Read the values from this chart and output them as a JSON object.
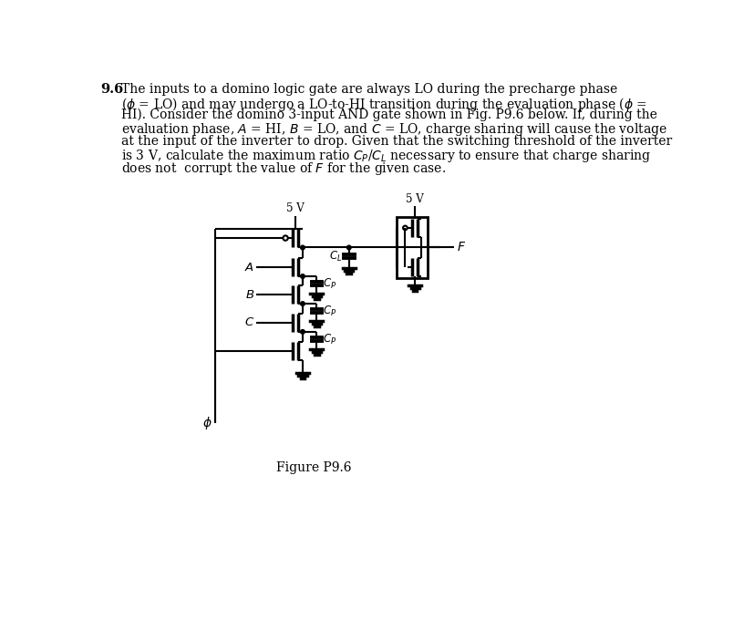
{
  "bg_color": "#ffffff",
  "fg_color": "#000000",
  "figure_label": "Figure P9.6",
  "text_problem_num": "9.6",
  "text_lines": [
    "The inputs to a domino logic gate are always LO during the precharge phase",
    "($\\phi$ = LO) and may undergo a LO-to-HI transition during the evaluation phase ($\\phi$ =",
    "HI). Consider the domino 3-input AND gate shown in Fig. P9.6 below. If, during the",
    "evaluation phase, $A$ = HI, $B$ = LO, and $C$ = LO, charge sharing will cause the voltage",
    "at the input of the inverter to drop. Given that the switching threshold of the inverter",
    "is 3 V, calculate the maximum ratio $C_P$/$C_L$ necessary to ensure that charge sharing",
    "does not  corrupt the value of $F$ for the given case."
  ]
}
